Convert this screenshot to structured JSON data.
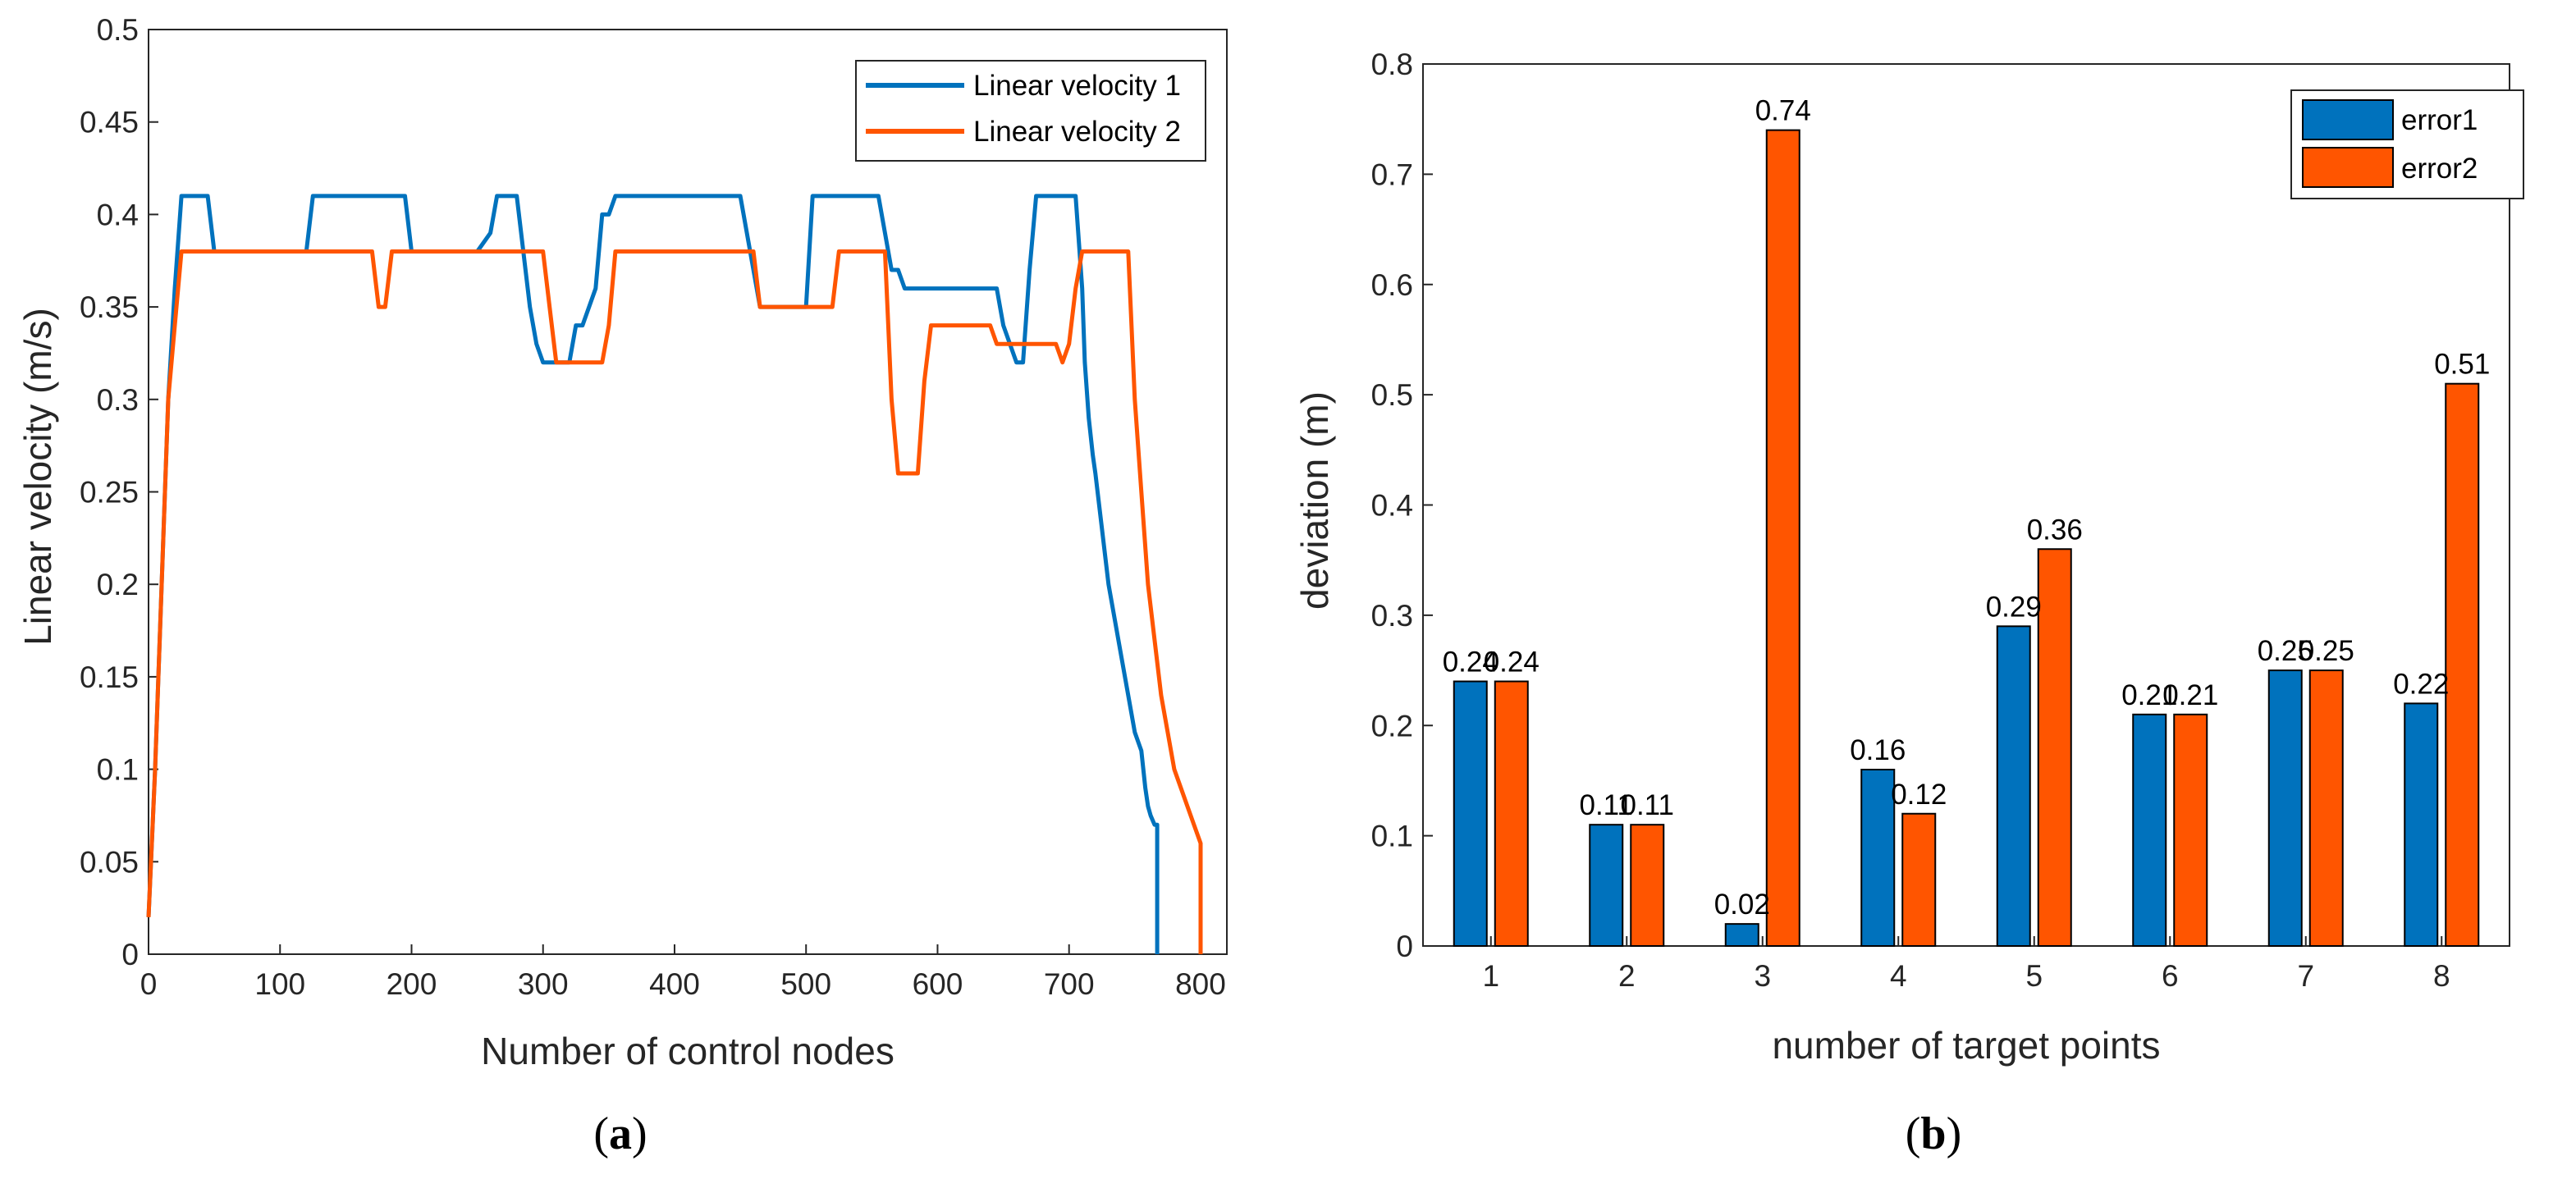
{
  "colors": {
    "series1": "#0072BD",
    "series2": "#FF5500",
    "axis": "#262626"
  },
  "chart_data": [
    {
      "type": "line",
      "panel_label": "a",
      "xlabel": "Number of control nodes",
      "ylabel": "Linear velocity (m/s)",
      "xlim": [
        0,
        820
      ],
      "ylim": [
        0,
        0.5
      ],
      "xticks": [
        0,
        100,
        200,
        300,
        400,
        500,
        600,
        700,
        800
      ],
      "yticks": [
        0,
        0.05,
        0.1,
        0.15,
        0.2,
        0.25,
        0.3,
        0.35,
        0.4,
        0.45,
        0.5
      ],
      "ytick_labels": [
        "0",
        "0.05",
        "0.1",
        "0.15",
        "0.2",
        "0.25",
        "0.3",
        "0.35",
        "0.4",
        "0.45",
        "0.5"
      ],
      "legend_position": "top-right",
      "series": [
        {
          "name": "Linear velocity 1",
          "x": [
            0,
            5,
            10,
            15,
            20,
            25,
            30,
            45,
            50,
            120,
            125,
            130,
            195,
            200,
            205,
            250,
            260,
            265,
            280,
            285,
            290,
            295,
            300,
            320,
            325,
            330,
            340,
            345,
            350,
            355,
            450,
            455,
            460,
            465,
            500,
            505,
            555,
            560,
            565,
            570,
            575,
            580,
            645,
            650,
            660,
            665,
            670,
            675,
            705,
            710,
            712,
            715,
            718,
            720,
            725,
            730,
            735,
            740,
            745,
            750,
            755,
            758,
            760,
            762,
            765,
            767,
            767
          ],
          "values": [
            0.02,
            0.1,
            0.2,
            0.3,
            0.36,
            0.41,
            0.41,
            0.41,
            0.38,
            0.38,
            0.41,
            0.41,
            0.41,
            0.38,
            0.38,
            0.38,
            0.39,
            0.41,
            0.41,
            0.38,
            0.35,
            0.33,
            0.32,
            0.32,
            0.34,
            0.34,
            0.36,
            0.4,
            0.4,
            0.41,
            0.41,
            0.39,
            0.37,
            0.35,
            0.35,
            0.41,
            0.41,
            0.39,
            0.37,
            0.37,
            0.36,
            0.36,
            0.36,
            0.34,
            0.32,
            0.32,
            0.37,
            0.41,
            0.41,
            0.36,
            0.32,
            0.29,
            0.27,
            0.26,
            0.23,
            0.2,
            0.18,
            0.16,
            0.14,
            0.12,
            0.11,
            0.09,
            0.08,
            0.075,
            0.07,
            0.07,
            0.0
          ]
        },
        {
          "name": "Linear velocity 2",
          "x": [
            0,
            5,
            10,
            15,
            20,
            25,
            170,
            175,
            180,
            185,
            300,
            305,
            310,
            345,
            350,
            355,
            460,
            465,
            520,
            525,
            560,
            565,
            570,
            575,
            585,
            590,
            595,
            640,
            645,
            690,
            695,
            700,
            705,
            710,
            745,
            750,
            755,
            760,
            765,
            770,
            775,
            780,
            785,
            790,
            795,
            800,
            800
          ],
          "values": [
            0.02,
            0.1,
            0.2,
            0.3,
            0.34,
            0.38,
            0.38,
            0.35,
            0.35,
            0.38,
            0.38,
            0.35,
            0.32,
            0.32,
            0.34,
            0.38,
            0.38,
            0.35,
            0.35,
            0.38,
            0.38,
            0.3,
            0.26,
            0.26,
            0.26,
            0.31,
            0.34,
            0.34,
            0.33,
            0.33,
            0.32,
            0.33,
            0.36,
            0.38,
            0.38,
            0.3,
            0.25,
            0.2,
            0.17,
            0.14,
            0.12,
            0.1,
            0.09,
            0.08,
            0.07,
            0.06,
            0.0
          ]
        }
      ]
    },
    {
      "type": "bar",
      "panel_label": "b",
      "xlabel": "number of target points",
      "ylabel": "deviation (m)",
      "ylim": [
        0,
        0.8
      ],
      "yticks": [
        0,
        0.1,
        0.2,
        0.3,
        0.4,
        0.5,
        0.6,
        0.7,
        0.8
      ],
      "ytick_labels": [
        "0",
        "0.1",
        "0.2",
        "0.3",
        "0.4",
        "0.5",
        "0.6",
        "0.7",
        "0.8"
      ],
      "categories": [
        "1",
        "2",
        "3",
        "4",
        "5",
        "6",
        "7",
        "8"
      ],
      "legend_position": "top-right",
      "series": [
        {
          "name": "error1",
          "values": [
            0.24,
            0.11,
            0.02,
            0.16,
            0.29,
            0.21,
            0.25,
            0.22
          ],
          "labels": [
            "0.24",
            "0.11",
            "0.02",
            "0.16",
            "0.29",
            "0.21",
            "0.25",
            "0.22"
          ]
        },
        {
          "name": "error2",
          "values": [
            0.24,
            0.11,
            0.74,
            0.12,
            0.36,
            0.21,
            0.25,
            0.51
          ],
          "labels": [
            "0.24",
            "0.11",
            "0.74",
            "0.12",
            "0.36",
            "0.21",
            "0.25",
            "0.51"
          ]
        }
      ]
    }
  ]
}
